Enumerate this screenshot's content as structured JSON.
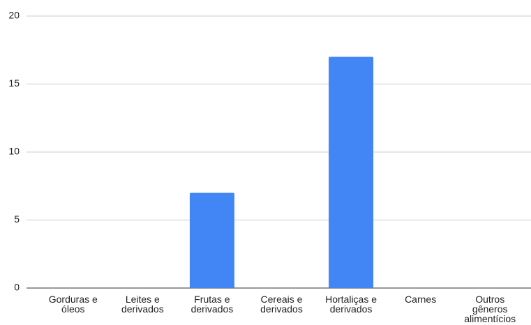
{
  "chart_data": {
    "type": "bar",
    "categories": [
      "Gorduras e óleos",
      "Leites e derivados",
      "Frutas e derivados",
      "Cereais e derivados",
      "Hortaliças e derivados",
      "Carnes",
      "Outros gêneros alimentícios"
    ],
    "values": [
      0,
      0,
      7,
      0,
      17,
      0,
      0
    ],
    "color": "#4285f4",
    "ylim": [
      0,
      20
    ],
    "yticks": [
      0,
      5,
      10,
      15,
      20
    ],
    "grid": true
  }
}
